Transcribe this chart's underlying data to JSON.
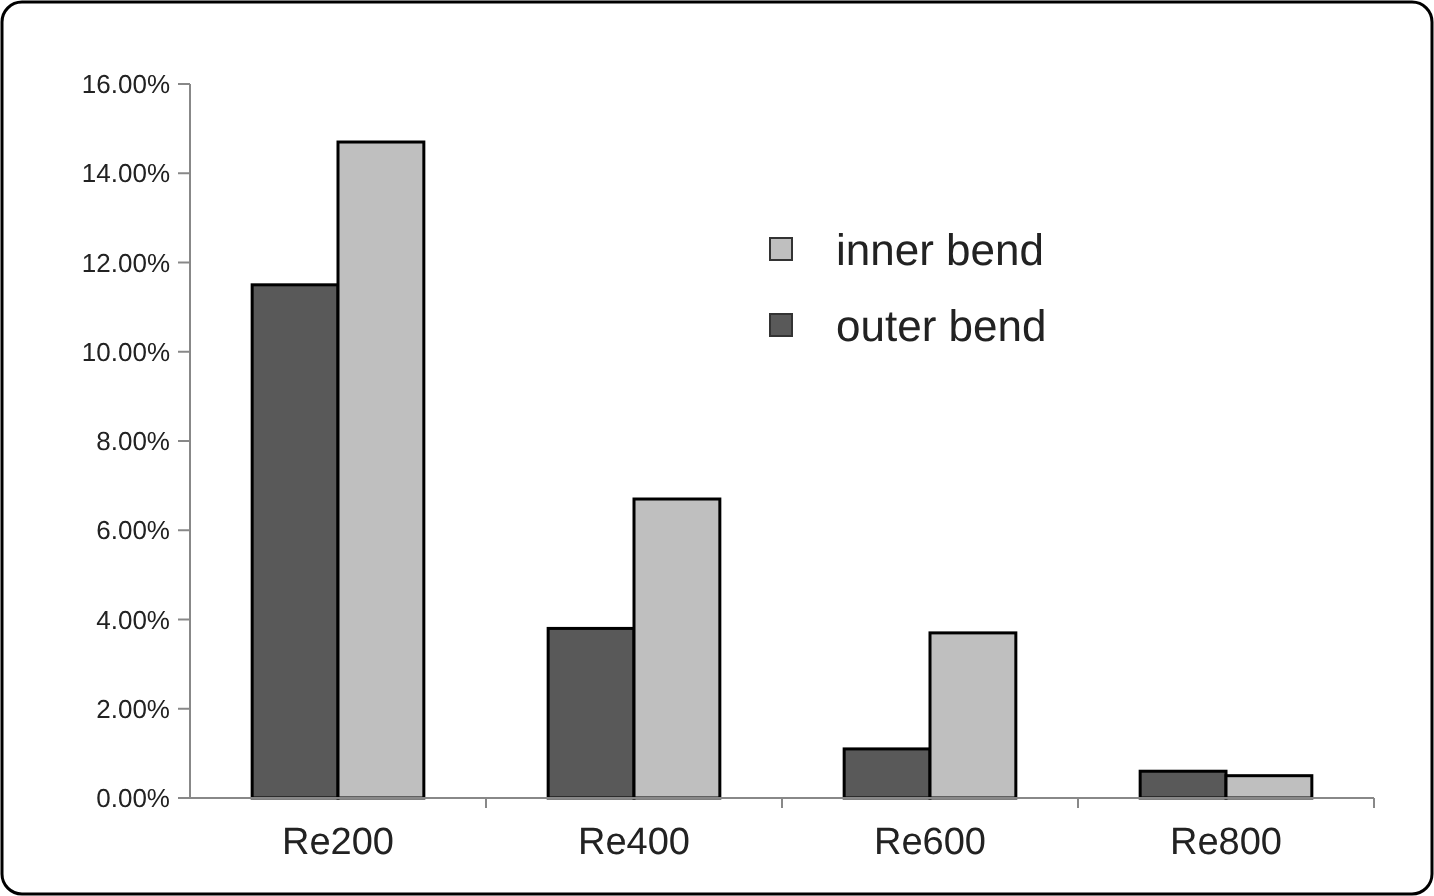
{
  "chart_data": {
    "type": "bar",
    "categories": [
      "Re200",
      "Re400",
      "Re600",
      "Re800"
    ],
    "series": [
      {
        "name": "outer bend",
        "color": "#595959",
        "values": [
          11.5,
          3.8,
          1.1,
          0.6
        ]
      },
      {
        "name": "inner bend",
        "color": "#bfbfbf",
        "values": [
          14.7,
          6.7,
          3.7,
          0.5
        ]
      }
    ],
    "ylim": [
      0,
      16
    ],
    "yticks": [
      {
        "value": 0,
        "label": "0.00%"
      },
      {
        "value": 2,
        "label": "2.00%"
      },
      {
        "value": 4,
        "label": "4.00%"
      },
      {
        "value": 6,
        "label": "6.00%"
      },
      {
        "value": 8,
        "label": "8.00%"
      },
      {
        "value": 10,
        "label": "10.00%"
      },
      {
        "value": 12,
        "label": "12.00%"
      },
      {
        "value": 14,
        "label": "14.00%"
      },
      {
        "value": 16,
        "label": "16.00%"
      }
    ],
    "legend": "top right",
    "grid": false
  }
}
